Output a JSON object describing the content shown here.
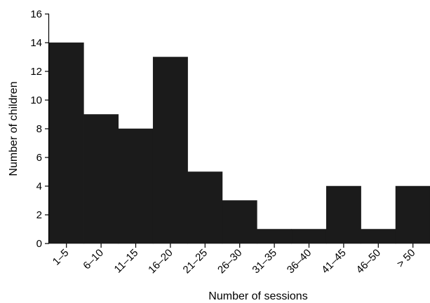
{
  "chart_data": {
    "type": "bar",
    "histogram": true,
    "categories": [
      "1–5",
      "6–10",
      "11–15",
      "16–20",
      "21–25",
      "26–30",
      "31–35",
      "36–40",
      "41–45",
      "46–50",
      "> 50"
    ],
    "values": [
      14,
      9,
      8,
      13,
      5,
      3,
      1,
      1,
      4,
      1,
      4
    ],
    "xlabel": "Number of sessions",
    "ylabel": "Number of children",
    "ylim": [
      0,
      16
    ],
    "yticks": [
      0,
      2,
      4,
      6,
      8,
      10,
      12,
      14,
      16
    ],
    "grid": false,
    "bar_color": "#1b1b1b"
  }
}
